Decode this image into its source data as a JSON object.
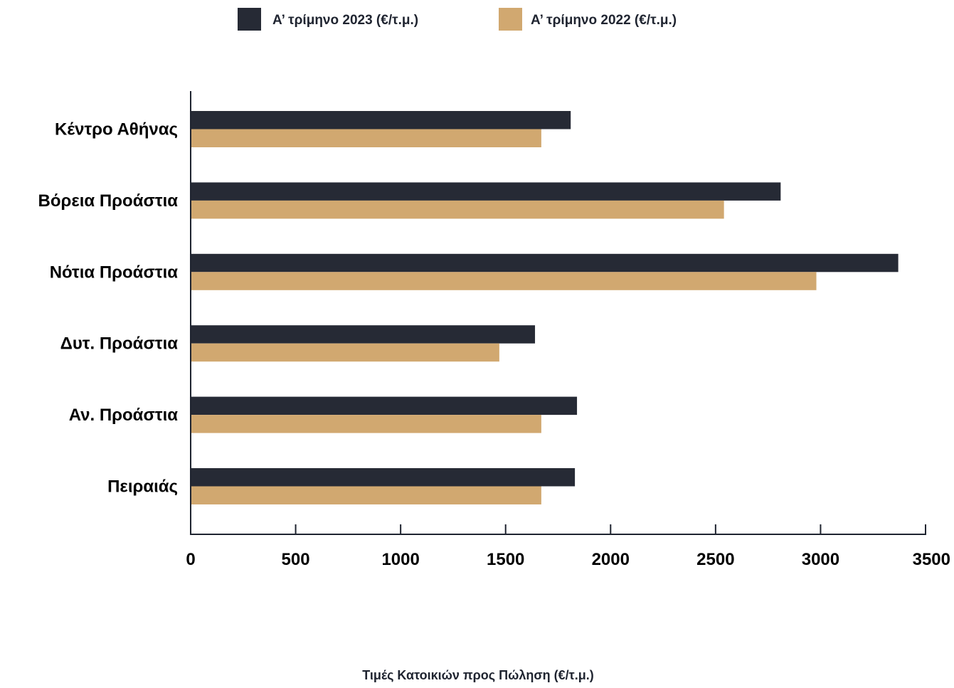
{
  "chart_data": {
    "type": "bar",
    "orientation": "horizontal",
    "categories": [
      "Κέντρο Αθήνας",
      "Βόρεια Προάστια",
      "Νότια Προάστια",
      "Δυτ. Προάστια",
      "Αν. Προάστια",
      "Πειραιάς"
    ],
    "series": [
      {
        "name": "Α’ τρίμηνο 2023 (€/τ.μ.)",
        "color": "#262a35",
        "values": [
          1810,
          2810,
          3370,
          1640,
          1840,
          1830
        ]
      },
      {
        "name": "Α’ τρίμηνο 2022 (€/τ.μ.)",
        "color": "#d1a870",
        "values": [
          1670,
          2540,
          2980,
          1470,
          1670,
          1670
        ]
      }
    ],
    "xlim": [
      0,
      3500
    ],
    "xticks": [
      "0",
      "500",
      "1000",
      "1500",
      "2000",
      "2500",
      "3000",
      "3500"
    ],
    "xlabel": "Τιμές Κατοικιών προς Πώληση (€/τ.μ.)",
    "title": "",
    "grid": false,
    "legend_position": "top-center"
  }
}
